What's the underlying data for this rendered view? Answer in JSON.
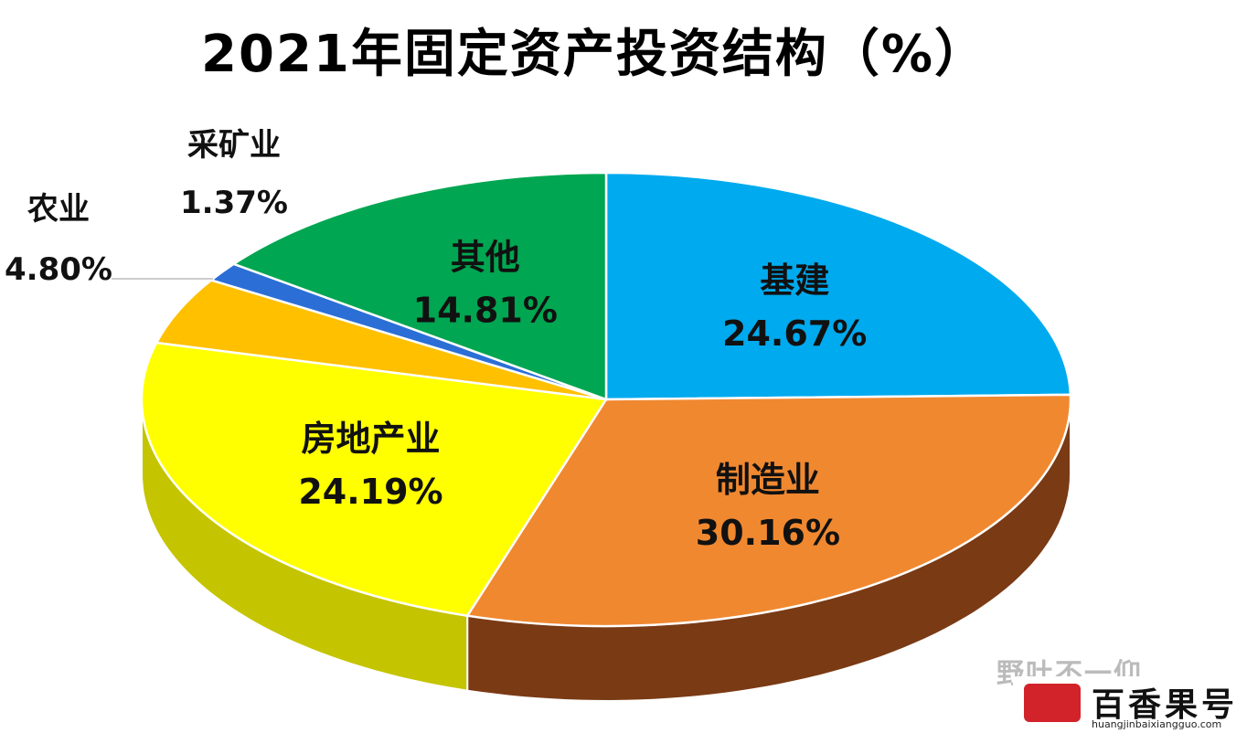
{
  "chart_data": {
    "type": "pie",
    "title": "2021年固定资产投资结构（%）",
    "slices": [
      {
        "name": "基建",
        "value": 24.67,
        "label": "24.67%",
        "color": "#00aaee",
        "side": "#0077aa"
      },
      {
        "name": "制造业",
        "value": 30.16,
        "label": "30.16%",
        "color": "#f08830",
        "side": "#7a3a14"
      },
      {
        "name": "房地产业",
        "value": 24.19,
        "label": "24.19%",
        "color": "#ffff00",
        "side": "#c4c400"
      },
      {
        "name": "农业",
        "value": 4.8,
        "label": "4.80%",
        "color": "#ffc000",
        "side": "#b08000"
      },
      {
        "name": "采矿业",
        "value": 1.37,
        "label": "1.37%",
        "color": "#2b6fd6",
        "side": "#1a4590"
      },
      {
        "name": "其他",
        "value": 14.81,
        "label": "14.81%",
        "color": "#00a651",
        "side": "#006a33"
      }
    ]
  },
  "watermark": {
    "brand": "百香果号",
    "url": "huangjinbaixiangguo.com",
    "faded": "野吐不一仰"
  }
}
